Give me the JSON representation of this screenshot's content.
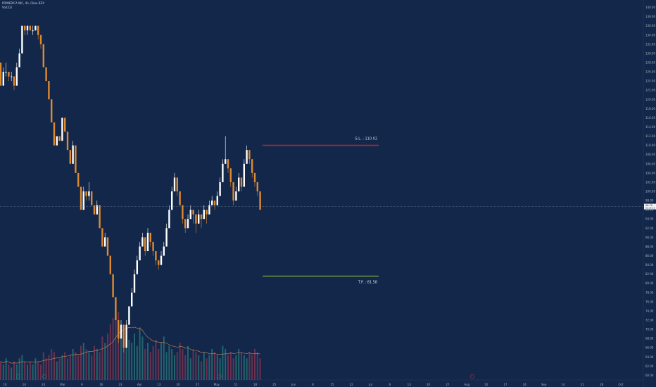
{
  "header": {
    "title": "PRIMERICA INC, 4h, Cboe BZX",
    "indicator": "Vol(22)"
  },
  "price_box": {
    "value": "96.70",
    "sub": "03:27:10"
  },
  "levels": [
    {
      "label": "S.L. : 110.02",
      "value": 110.02,
      "color": "#c0262d"
    },
    {
      "label": "T.P. : 81.58",
      "value": 81.58,
      "color": "#6b9c3c"
    }
  ],
  "chart_data": {
    "type": "candlestick",
    "ylim": [
      59,
      141
    ],
    "y_ticks": [
      "60.00",
      "62.00",
      "64.00",
      "66.00",
      "68.00",
      "70.00",
      "72.00",
      "74.00",
      "76.00",
      "78.00",
      "80.00",
      "82.00",
      "84.00",
      "86.00",
      "88.00",
      "90.00",
      "92.00",
      "94.00",
      "96.00",
      "98.00",
      "100.00",
      "102.00",
      "104.00",
      "106.00",
      "108.00",
      "110.00",
      "112.00",
      "114.00",
      "116.00",
      "118.00",
      "120.00",
      "122.00",
      "124.00",
      "126.00",
      "128.00",
      "130.00",
      "132.00",
      "134.00",
      "136.00",
      "138.00",
      "140.00"
    ],
    "x_ticks": [
      "10",
      "14",
      "24",
      "Mar",
      "9",
      "16",
      "23",
      "Apr",
      "13",
      "20",
      "27",
      "May",
      "11",
      "18",
      "25",
      "Jun",
      "8",
      "15",
      "22",
      "Jul",
      "6",
      "13",
      "20",
      "27",
      "Aug",
      "10",
      "17",
      "24",
      "Sep",
      "14",
      "21",
      "28",
      "Oct"
    ],
    "current_price": 96.7,
    "candles": [
      [
        128,
        128,
        123,
        123
      ],
      [
        123,
        127,
        123,
        126
      ],
      [
        126,
        128,
        125,
        126
      ],
      [
        126,
        126,
        124,
        125
      ],
      [
        125,
        126,
        124,
        125
      ],
      [
        125,
        125,
        122,
        123
      ],
      [
        123,
        128,
        123,
        127
      ],
      [
        127,
        131,
        127,
        130
      ],
      [
        130,
        136,
        130,
        136
      ],
      [
        136,
        136,
        134,
        135
      ],
      [
        135,
        136,
        134,
        136
      ],
      [
        136,
        136,
        135,
        135
      ],
      [
        135,
        136,
        134,
        135
      ],
      [
        135,
        136,
        135,
        136
      ],
      [
        136,
        136,
        133,
        134
      ],
      [
        134,
        134,
        131,
        132
      ],
      [
        132,
        132,
        127,
        127
      ],
      [
        127,
        127,
        124,
        124
      ],
      [
        124,
        124,
        120,
        120
      ],
      [
        120,
        120,
        115,
        115
      ],
      [
        115,
        115,
        110,
        110
      ],
      [
        110,
        112,
        110,
        112
      ],
      [
        112,
        112,
        111,
        111
      ],
      [
        111,
        116,
        111,
        116
      ],
      [
        116,
        116,
        113,
        113
      ],
      [
        113,
        113,
        109,
        109
      ],
      [
        109,
        109,
        106,
        106
      ],
      [
        106,
        111,
        106,
        110
      ],
      [
        110,
        110,
        104,
        104
      ],
      [
        104,
        104,
        101,
        101
      ],
      [
        101,
        101,
        96,
        96
      ],
      [
        96,
        101,
        96,
        100
      ],
      [
        100,
        100,
        98,
        99
      ],
      [
        99,
        102,
        98,
        100
      ],
      [
        100,
        100,
        97,
        97
      ],
      [
        97,
        97,
        95,
        95
      ],
      [
        95,
        98,
        95,
        97
      ],
      [
        97,
        97,
        92,
        92
      ],
      [
        92,
        92,
        88,
        88
      ],
      [
        88,
        91,
        88,
        90
      ],
      [
        90,
        90,
        86,
        86
      ],
      [
        86,
        86,
        82,
        82
      ],
      [
        82,
        82,
        77,
        77
      ],
      [
        77,
        77,
        72,
        72
      ],
      [
        72,
        72,
        67,
        68
      ],
      [
        68,
        72,
        68,
        71
      ],
      [
        71,
        71,
        65,
        66
      ],
      [
        66,
        72,
        66,
        71
      ],
      [
        71,
        75,
        71,
        75
      ],
      [
        75,
        79,
        75,
        78
      ],
      [
        78,
        83,
        78,
        82
      ],
      [
        82,
        86,
        82,
        85
      ],
      [
        85,
        89,
        85,
        88
      ],
      [
        88,
        91,
        88,
        90
      ],
      [
        90,
        90,
        86,
        87
      ],
      [
        87,
        92,
        87,
        91
      ],
      [
        91,
        91,
        88,
        89
      ],
      [
        89,
        89,
        86,
        87
      ],
      [
        87,
        87,
        84,
        85
      ],
      [
        85,
        85,
        83,
        84
      ],
      [
        84,
        87,
        84,
        86
      ],
      [
        86,
        89,
        86,
        88
      ],
      [
        88,
        93,
        88,
        92
      ],
      [
        92,
        97,
        92,
        96
      ],
      [
        96,
        101,
        96,
        100
      ],
      [
        100,
        104,
        100,
        103
      ],
      [
        103,
        103,
        99,
        100
      ],
      [
        100,
        100,
        97,
        97
      ],
      [
        97,
        97,
        93,
        94
      ],
      [
        94,
        94,
        91,
        92
      ],
      [
        92,
        95,
        92,
        94
      ],
      [
        94,
        97,
        94,
        96
      ],
      [
        96,
        96,
        93,
        95
      ],
      [
        95,
        95,
        91,
        93
      ],
      [
        93,
        96,
        93,
        95
      ],
      [
        95,
        95,
        92,
        94
      ],
      [
        94,
        97,
        94,
        96
      ],
      [
        96,
        96,
        93,
        95
      ],
      [
        95,
        98,
        95,
        97
      ],
      [
        97,
        99,
        97,
        98
      ],
      [
        98,
        98,
        96,
        97
      ],
      [
        97,
        100,
        97,
        99
      ],
      [
        99,
        103,
        99,
        102
      ],
      [
        102,
        107,
        102,
        106
      ],
      [
        106,
        112,
        106,
        107
      ],
      [
        107,
        107,
        104,
        105
      ],
      [
        105,
        105,
        101,
        102
      ],
      [
        102,
        102,
        97,
        98
      ],
      [
        98,
        101,
        98,
        100
      ],
      [
        100,
        104,
        100,
        103
      ],
      [
        103,
        103,
        100,
        101
      ],
      [
        101,
        107,
        101,
        106
      ],
      [
        106,
        110,
        106,
        109
      ],
      [
        109,
        109,
        106,
        107
      ],
      [
        107,
        107,
        103,
        104
      ],
      [
        104,
        104,
        101,
        102
      ],
      [
        102,
        102,
        99,
        100
      ],
      [
        100,
        100,
        96,
        96
      ]
    ],
    "volumes": [
      6,
      5,
      7,
      5,
      4,
      6,
      5,
      7,
      8,
      6,
      5,
      6,
      5,
      7,
      6,
      5,
      9,
      7,
      8,
      10,
      9,
      6,
      7,
      8,
      9,
      7,
      8,
      10,
      9,
      8,
      11,
      12,
      10,
      9,
      8,
      11,
      10,
      9,
      14,
      12,
      15,
      18,
      20,
      25,
      22,
      16,
      18,
      14,
      13,
      12,
      15,
      11,
      17,
      14,
      10,
      12,
      9,
      11,
      13,
      10,
      12,
      14,
      9,
      11,
      10,
      8,
      9,
      12,
      10,
      8,
      11,
      7,
      10,
      9,
      8,
      6,
      9,
      7,
      8,
      10,
      9,
      8,
      7,
      11,
      10,
      8,
      9,
      7,
      8,
      10,
      9,
      8,
      7,
      9,
      8,
      10,
      9,
      7
    ]
  }
}
